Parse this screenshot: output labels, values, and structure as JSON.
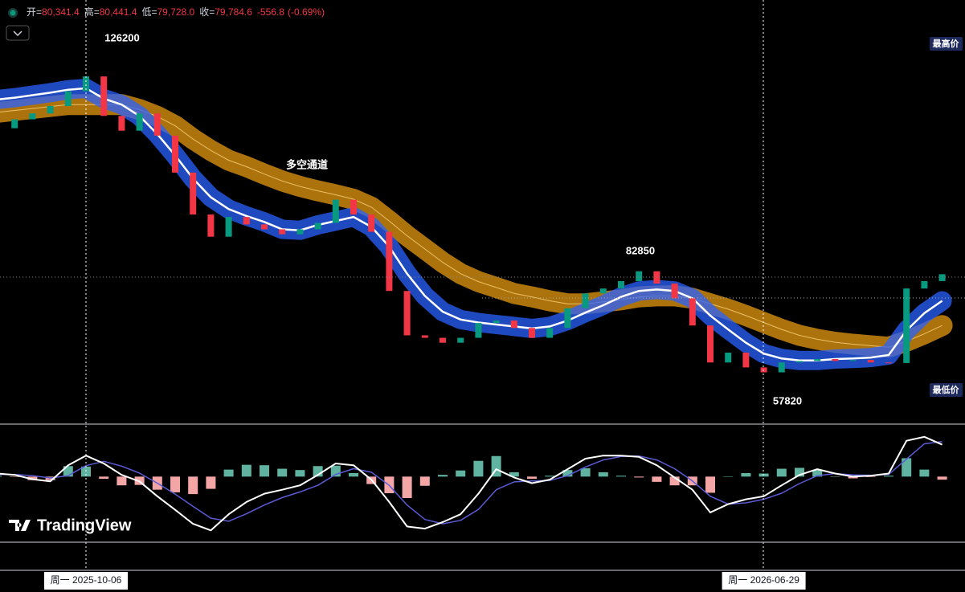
{
  "header": {
    "open_label": "开=",
    "open": "80,341.4",
    "high_label": "高=",
    "high": "80,441.4",
    "low_label": "低=",
    "low": "79,728.0",
    "close_label": "收=",
    "close": "79,784.6",
    "change": "-556.8",
    "change_pct": "(-0.69%)"
  },
  "watermark": "TradingView",
  "chart_data": [
    {
      "type": "candlestick",
      "categories": [
        null,
        null,
        null,
        null,
        null,
        "周一 2025-10-06",
        null,
        null,
        null,
        null,
        null,
        null,
        null,
        null,
        null,
        null,
        null,
        null,
        null,
        null,
        null,
        null,
        null,
        null,
        null,
        null,
        null,
        null,
        null,
        null,
        null,
        null,
        null,
        null,
        null,
        null,
        null,
        null,
        null,
        null,
        null,
        null,
        null,
        "周一 2026-06-29",
        null,
        null,
        null,
        null,
        null,
        null,
        null,
        null,
        null,
        null
      ],
      "open": [
        111000,
        110000,
        111800,
        113000,
        114500,
        117500,
        120500,
        112500,
        109500,
        113000,
        108500,
        101000,
        92500,
        88000,
        92000,
        90500,
        89500,
        88500,
        89500,
        90800,
        95500,
        92500,
        89000,
        77000,
        68000,
        67500,
        66500,
        67500,
        70500,
        71000,
        69500,
        67500,
        69500,
        73500,
        76500,
        77500,
        79000,
        81000,
        78500,
        75500,
        70000,
        62500,
        64500,
        61500,
        60500,
        62500,
        62800,
        63200,
        62800,
        63000,
        62500,
        62400,
        77500,
        79000
      ],
      "close": [
        110000,
        111800,
        113000,
        114500,
        117500,
        120500,
        112500,
        109500,
        113000,
        108500,
        101000,
        92500,
        88000,
        92000,
        90500,
        89500,
        88500,
        89500,
        90800,
        95500,
        92500,
        89000,
        77000,
        68000,
        67500,
        66500,
        67500,
        70500,
        71000,
        69500,
        67500,
        69500,
        73500,
        76500,
        77500,
        79000,
        81000,
        78500,
        75500,
        70000,
        62500,
        64500,
        61500,
        60500,
        62500,
        62800,
        63200,
        62800,
        63000,
        62500,
        62400,
        77500,
        79000,
        80400
      ],
      "ma_fast": [
        115800,
        116200,
        116700,
        117200,
        117800,
        118100,
        116000,
        114800,
        112500,
        108800,
        104500,
        99800,
        96000,
        93600,
        92200,
        91000,
        89500,
        89300,
        90400,
        91200,
        92000,
        90000,
        86000,
        80500,
        76000,
        72800,
        71200,
        70600,
        70200,
        69800,
        69400,
        69800,
        71000,
        72600,
        74100,
        75800,
        77000,
        77300,
        77000,
        75500,
        72000,
        69200,
        66500,
        64300,
        63300,
        62900,
        62900,
        63200,
        63300,
        63500,
        64000,
        69000,
        72500,
        75000
      ],
      "ma_slow": [
        113200,
        113600,
        114000,
        114400,
        114800,
        114800,
        114800,
        114800,
        113800,
        112400,
        110500,
        107800,
        105500,
        103500,
        102200,
        100700,
        99300,
        98200,
        97300,
        96500,
        95600,
        94000,
        91200,
        88200,
        85500,
        82800,
        80500,
        78900,
        77700,
        76500,
        75800,
        75000,
        74400,
        74400,
        74800,
        75200,
        75800,
        76000,
        76000,
        75500,
        74400,
        73300,
        72000,
        70600,
        69200,
        68000,
        67200,
        66600,
        66200,
        65900,
        65600,
        66800,
        68300,
        70000
      ],
      "ylim": [
        50000,
        136000
      ],
      "up_color": "#089981",
      "down_color": "#f23645",
      "fast_color": "#2962ff",
      "slow_color": "#e69a12",
      "peak": 126200,
      "mid_peak": 82850,
      "trough": 57820,
      "channel_label": "多空通道",
      "high_price_label": "最高价",
      "low_price_label": "最低价"
    },
    {
      "type": "macd",
      "macd": [
        0.7,
        0.4,
        -0.6,
        -1.1,
        2.6,
        4.8,
        3.0,
        0.4,
        -1.1,
        -4.5,
        -7.6,
        -10.8,
        -12.3,
        -8.6,
        -5.8,
        -3.9,
        -3.0,
        -2.0,
        0.4,
        3.0,
        2.6,
        -0.7,
        -5.8,
        -11.4,
        -11.9,
        -10.4,
        -8.6,
        -3.9,
        1.7,
        -0.2,
        -1.5,
        -0.7,
        1.7,
        4.1,
        4.8,
        4.8,
        4.5,
        2.6,
        -0.2,
        -3.0,
        -8.2,
        -6.3,
        -5.2,
        -4.5,
        -2.0,
        0.4,
        1.7,
        0.7,
        0,
        0.2,
        0.7,
        8.2,
        9.1,
        7.3
      ],
      "signal": [
        0.5,
        0.5,
        0.2,
        -0.3,
        0.2,
        2.5,
        3.5,
        2.4,
        0.8,
        -1.5,
        -4.0,
        -6.8,
        -9.5,
        -10.2,
        -8.5,
        -6.5,
        -4.8,
        -3.5,
        -2.0,
        0.5,
        1.8,
        1.0,
        -2.0,
        -6.5,
        -9.8,
        -10.8,
        -10.0,
        -7.5,
        -3.0,
        -1.2,
        -1.0,
        -0.9,
        0.2,
        2.2,
        3.8,
        4.6,
        4.7,
        3.8,
        1.8,
        -1.0,
        -4.5,
        -6.3,
        -6.0,
        -5.2,
        -3.8,
        -1.6,
        0.2,
        0.7,
        0.4,
        0.3,
        0.5,
        4.0,
        7.5,
        8.0
      ],
      "hist": [
        0.2,
        -0.1,
        -0.8,
        -0.8,
        2.4,
        2.3,
        -0.5,
        -2.0,
        -1.9,
        -3.0,
        -3.6,
        -4.0,
        -2.8,
        1.6,
        2.7,
        2.6,
        1.8,
        1.5,
        2.4,
        2.5,
        0.8,
        -1.7,
        -3.8,
        -4.9,
        -2.1,
        0.4,
        1.4,
        3.6,
        4.7,
        1.0,
        -0.5,
        0.2,
        1.5,
        1.9,
        1.0,
        0.2,
        -0.2,
        -1.2,
        -2.0,
        -2.0,
        -3.7,
        0,
        0.8,
        0.7,
        1.8,
        2.0,
        1.5,
        0,
        -0.4,
        -0.1,
        0.2,
        4.2,
        1.6,
        -0.7
      ],
      "ylim": [
        -15,
        12
      ],
      "macd_color": "#ffffff",
      "signal_color": "#5b5bd6",
      "hist_up_color": "#5fb3a0",
      "hist_down_color": "#f4a6a6"
    }
  ]
}
